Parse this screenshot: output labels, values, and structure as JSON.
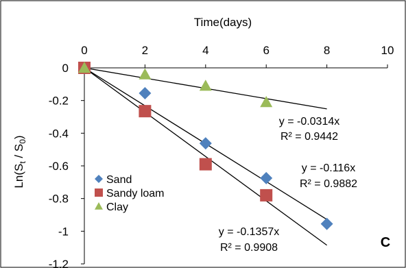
{
  "chart_data": {
    "type": "scatter",
    "title": "",
    "xlabel": "Time(days)",
    "ylabel_main": "Ln(S",
    "ylabel_sub1": "t",
    "ylabel_mid": " / S",
    "ylabel_sub2": "0",
    "ylabel_end": ")",
    "panel_label": "C",
    "xlim": [
      0,
      10
    ],
    "ylim": [
      -1.2,
      0
    ],
    "x_ticks": [
      0,
      2,
      4,
      6,
      8,
      10
    ],
    "y_ticks": [
      0,
      -0.2,
      -0.4,
      -0.6,
      -0.8,
      -1,
      -1.2
    ],
    "x_tick_labels": [
      "0",
      "2",
      "4",
      "6",
      "8",
      "10"
    ],
    "y_tick_labels": [
      "0",
      "-0.2",
      "-0.4",
      "-0.6",
      "-0.8",
      "-1",
      "-1.2"
    ],
    "x_axis_position": "top",
    "grid": false,
    "legend_position": "center-left",
    "series": [
      {
        "name": "Sand",
        "marker": "diamond",
        "color": "#4f81bd",
        "x": [
          0,
          2,
          4,
          6,
          8
        ],
        "y": [
          0,
          -0.155,
          -0.462,
          -0.675,
          -0.955
        ]
      },
      {
        "name": "Sandy loam",
        "marker": "square",
        "color": "#c0504d",
        "x": [
          0,
          2,
          4,
          6
        ],
        "y": [
          0,
          -0.265,
          -0.59,
          -0.78
        ]
      },
      {
        "name": "Clay",
        "marker": "triangle",
        "color": "#9bbb59",
        "x": [
          0,
          2,
          4,
          6
        ],
        "y": [
          0,
          -0.04,
          -0.11,
          -0.21
        ]
      }
    ],
    "trendlines": [
      {
        "slope": -0.0314,
        "x_end": 8,
        "equation": "y = -0.0314x",
        "r2": "R² = 0.9442"
      },
      {
        "slope": -0.116,
        "x_end": 8,
        "equation": "y = -0.116x",
        "r2": "R² = 0.9882"
      },
      {
        "slope": -0.1357,
        "x_end": 8,
        "equation": "y = -0.1357x",
        "r2": "R² = 0.9908"
      }
    ]
  }
}
